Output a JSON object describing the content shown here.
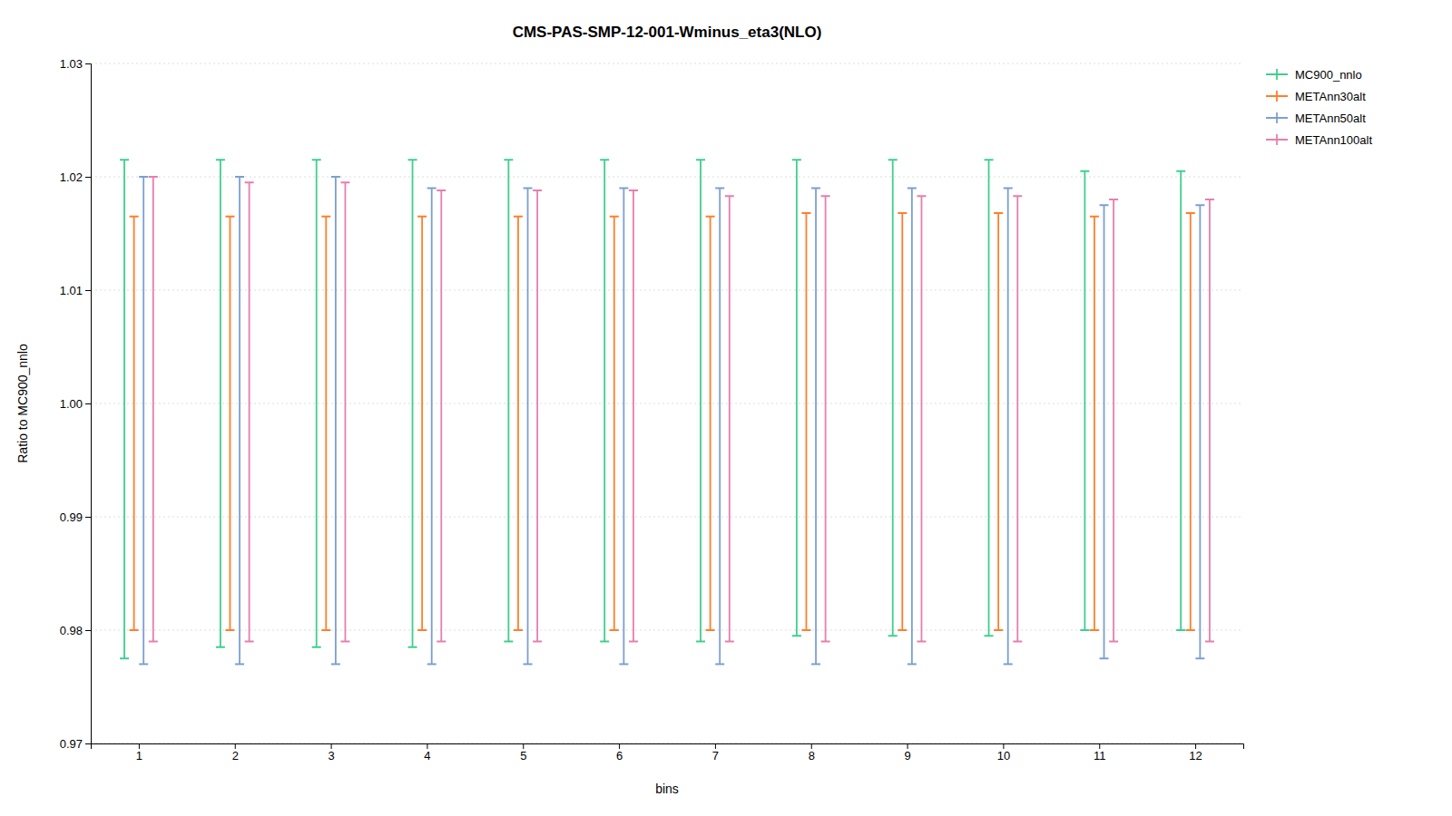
{
  "chart_data": {
    "type": "errorbar",
    "title": "CMS-PAS-SMP-12-001-Wminus_eta3(NLO)",
    "xlabel": "bins",
    "ylabel": "Ratio to MC900_nnlo",
    "x": [
      1,
      2,
      3,
      4,
      5,
      6,
      7,
      8,
      9,
      10,
      11,
      12
    ],
    "xlim": [
      0.5,
      12.5
    ],
    "xticks": [
      1,
      2,
      3,
      4,
      5,
      6,
      7,
      8,
      9,
      10,
      11,
      12
    ],
    "ylim": [
      0.97,
      1.03
    ],
    "yticks": [
      0.97,
      0.98,
      0.99,
      {
        "value": 1,
        "label": "1.00"
      },
      1.01,
      1.02,
      1.03
    ],
    "grid": true,
    "legend": "upper right",
    "series": [
      {
        "name": "MC900_nnlo",
        "color": "#3ecf8e",
        "values": [
          1.021,
          1.021,
          1.021,
          1.021,
          1.021,
          1.021,
          1.021,
          1.021,
          1.021,
          1.021,
          1.02,
          1.02
        ],
        "lower": [
          0.9775,
          0.9785,
          0.9785,
          0.9785,
          0.979,
          0.979,
          0.979,
          0.9795,
          0.9795,
          0.9795,
          0.98,
          0.98
        ],
        "upper": [
          1.0215,
          1.0215,
          1.0215,
          1.0215,
          1.0215,
          1.0215,
          1.0215,
          1.0215,
          1.0215,
          1.0215,
          1.0205,
          1.0205
        ]
      },
      {
        "name": "METAnn30alt",
        "color": "#ff7f2a",
        "values": [
          1.0165,
          1.0165,
          1.0165,
          1.0165,
          1.0165,
          1.0165,
          1.0165,
          1.0168,
          1.0168,
          1.0168,
          1.0165,
          1.0168
        ],
        "lower": [
          0.98,
          0.98,
          0.98,
          0.98,
          0.98,
          0.98,
          0.98,
          0.98,
          0.98,
          0.98,
          0.98,
          0.98
        ],
        "upper": [
          1.0165,
          1.0165,
          1.0165,
          1.0165,
          1.0165,
          1.0165,
          1.0165,
          1.0168,
          1.0168,
          1.0168,
          1.0165,
          1.0168
        ]
      },
      {
        "name": "METAnn50alt",
        "color": "#7b9fd4",
        "values": [
          1.02,
          1.02,
          1.02,
          1.019,
          1.019,
          1.019,
          1.019,
          1.019,
          1.019,
          1.019,
          1.0175,
          1.0175
        ],
        "lower": [
          0.977,
          0.977,
          0.977,
          0.977,
          0.977,
          0.977,
          0.977,
          0.977,
          0.977,
          0.977,
          0.9775,
          0.9775
        ],
        "upper": [
          1.02,
          1.02,
          1.02,
          1.019,
          1.019,
          1.019,
          1.019,
          1.019,
          1.019,
          1.019,
          1.0175,
          1.0175
        ]
      },
      {
        "name": "METAnn100alt",
        "color": "#e87eac",
        "values": [
          1.02,
          1.0195,
          1.0195,
          1.0188,
          1.0188,
          1.0188,
          1.0183,
          1.0183,
          1.0183,
          1.0183,
          1.018,
          1.018
        ],
        "lower": [
          0.979,
          0.979,
          0.979,
          0.979,
          0.979,
          0.979,
          0.979,
          0.979,
          0.979,
          0.979,
          0.979,
          0.979
        ],
        "upper": [
          1.02,
          1.0195,
          1.0195,
          1.0188,
          1.0188,
          1.0188,
          1.0183,
          1.0183,
          1.0183,
          1.0183,
          1.018,
          1.018
        ]
      }
    ]
  }
}
